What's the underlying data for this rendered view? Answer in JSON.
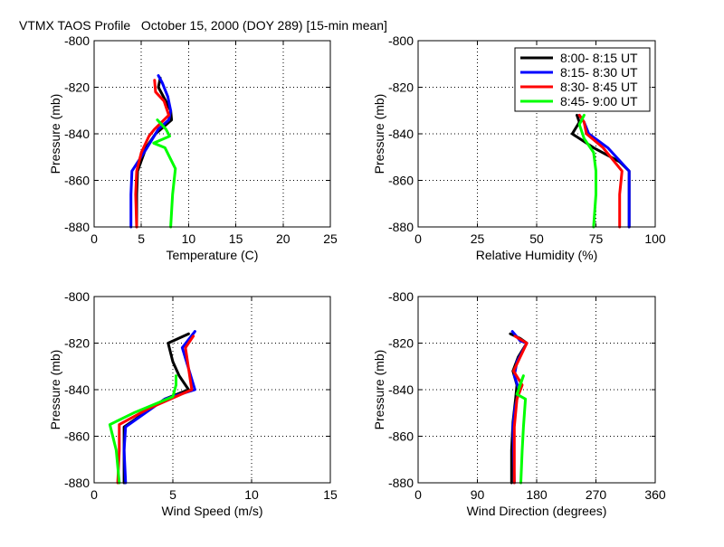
{
  "figure_title": "VTMX TAOS Profile   October 15, 2000 (DOY 289) [15-min mean]",
  "chart_data": [
    {
      "type": "line",
      "xlabel": "Temperature (C)",
      "ylabel": "Pressure (mb)",
      "xlim": [
        0,
        25
      ],
      "ylim": [
        -880,
        -800
      ],
      "xticks": [
        "0",
        "5",
        "10",
        "15",
        "20",
        "25"
      ],
      "yticks": [
        "-800",
        "-820",
        "-840",
        "-860",
        "-880"
      ],
      "grid": true,
      "series": [
        {
          "name": "8:00- 8:15 UT",
          "color": "#000000",
          "points": [
            [
              7.0,
              -816
            ],
            [
              6.8,
              -820
            ],
            [
              7.6,
              -826
            ],
            [
              8.1,
              -830
            ],
            [
              8.2,
              -834
            ],
            [
              6.5,
              -840
            ],
            [
              5.5,
              -846
            ],
            [
              4.6,
              -856
            ],
            [
              4.5,
              -866
            ],
            [
              4.5,
              -880
            ]
          ]
        },
        {
          "name": "8:15- 8:30 UT",
          "color": "#0000ff",
          "points": [
            [
              6.8,
              -815
            ],
            [
              7.2,
              -818
            ],
            [
              7.8,
              -824
            ],
            [
              8.1,
              -830
            ],
            [
              7.9,
              -834
            ],
            [
              6.8,
              -838
            ],
            [
              5.6,
              -846
            ],
            [
              4.0,
              -856
            ],
            [
              3.9,
              -866
            ],
            [
              3.9,
              -880
            ]
          ]
        },
        {
          "name": "8:30- 8:45 UT",
          "color": "#ff0000",
          "points": [
            [
              6.4,
              -817
            ],
            [
              6.5,
              -822
            ],
            [
              7.4,
              -826
            ],
            [
              7.9,
              -832
            ],
            [
              6.4,
              -838
            ],
            [
              5.8,
              -841
            ],
            [
              5.0,
              -848
            ],
            [
              4.5,
              -856
            ],
            [
              4.4,
              -866
            ],
            [
              4.5,
              -880
            ]
          ]
        },
        {
          "name": "8:45- 9:00 UT",
          "color": "#00ff00",
          "points": [
            [
              6.7,
              -834
            ],
            [
              7.6,
              -838
            ],
            [
              8.0,
              -841
            ],
            [
              6.3,
              -844
            ],
            [
              7.5,
              -846
            ],
            [
              8.6,
              -855
            ],
            [
              8.3,
              -866
            ],
            [
              8.1,
              -880
            ]
          ]
        }
      ]
    },
    {
      "type": "line",
      "xlabel": "Relative Humidity (%)",
      "ylabel": "Pressure (mb)",
      "xlim": [
        0,
        100
      ],
      "ylim": [
        -880,
        -800
      ],
      "xticks": [
        "0",
        "25",
        "50",
        "75",
        "100"
      ],
      "yticks": [
        "-800",
        "-820",
        "-840",
        "-860",
        "-880"
      ],
      "grid": true,
      "series": [
        {
          "name": "8:00- 8:15 UT",
          "color": "#000000",
          "points": [
            [
              67,
              -832
            ],
            [
              68,
              -835
            ],
            [
              65,
              -840
            ],
            [
              74,
              -846
            ],
            [
              85,
              -852
            ],
            [
              89,
              -856
            ],
            [
              89,
              -866
            ],
            [
              89,
              -880
            ]
          ]
        },
        {
          "name": "8:15- 8:30 UT",
          "color": "#0000ff",
          "points": [
            [
              68,
              -832
            ],
            [
              70,
              -835
            ],
            [
              72,
              -840
            ],
            [
              80,
              -846
            ],
            [
              89,
              -856
            ],
            [
              89,
              -866
            ],
            [
              89,
              -880
            ]
          ]
        },
        {
          "name": "8:30- 8:45 UT",
          "color": "#ff0000",
          "points": [
            [
              68,
              -832
            ],
            [
              70,
              -835
            ],
            [
              71,
              -840
            ],
            [
              78,
              -846
            ],
            [
              86,
              -856
            ],
            [
              85,
              -866
            ],
            [
              85,
              -880
            ]
          ]
        },
        {
          "name": "8:45- 9:00 UT",
          "color": "#00ff00",
          "points": [
            [
              70,
              -832
            ],
            [
              68,
              -836
            ],
            [
              70,
              -842
            ],
            [
              74,
              -848
            ],
            [
              75,
              -856
            ],
            [
              75,
              -866
            ],
            [
              74,
              -880
            ]
          ]
        }
      ]
    },
    {
      "type": "line",
      "xlabel": "Wind Speed (m/s)",
      "ylabel": "Pressure (mb)",
      "xlim": [
        0,
        15
      ],
      "ylim": [
        -880,
        -800
      ],
      "xticks": [
        "0",
        "5",
        "10",
        "15"
      ],
      "yticks": [
        "-800",
        "-820",
        "-840",
        "-860",
        "-880"
      ],
      "grid": true,
      "series": [
        {
          "name": "8:00- 8:15 UT",
          "color": "#000000",
          "points": [
            [
              6.0,
              -816
            ],
            [
              4.7,
              -820
            ],
            [
              5.0,
              -828
            ],
            [
              5.4,
              -834
            ],
            [
              6.0,
              -840
            ],
            [
              4.5,
              -844
            ],
            [
              1.9,
              -856
            ],
            [
              1.9,
              -866
            ],
            [
              1.9,
              -880
            ]
          ]
        },
        {
          "name": "8:15- 8:30 UT",
          "color": "#0000ff",
          "points": [
            [
              6.4,
              -815
            ],
            [
              5.6,
              -822
            ],
            [
              6.4,
              -840
            ],
            [
              4.5,
              -844
            ],
            [
              2.0,
              -856
            ],
            [
              1.9,
              -866
            ],
            [
              2.0,
              -880
            ]
          ]
        },
        {
          "name": "8:30- 8:45 UT",
          "color": "#ff0000",
          "points": [
            [
              6.3,
              -817
            ],
            [
              5.8,
              -822
            ],
            [
              6.2,
              -840
            ],
            [
              3.5,
              -848
            ],
            [
              1.6,
              -855
            ],
            [
              1.6,
              -866
            ],
            [
              1.5,
              -880
            ]
          ]
        },
        {
          "name": "8:45- 9:00 UT",
          "color": "#00ff00",
          "points": [
            [
              5.2,
              -834
            ],
            [
              5.2,
              -838
            ],
            [
              5.0,
              -843
            ],
            [
              2.5,
              -850
            ],
            [
              1.0,
              -855
            ],
            [
              1.4,
              -866
            ],
            [
              1.6,
              -880
            ]
          ]
        }
      ]
    },
    {
      "type": "line",
      "xlabel": "Wind Direction (degrees)",
      "ylabel": "Pressure (mb)",
      "xlim": [
        0,
        360
      ],
      "ylim": [
        -880,
        -800
      ],
      "xticks": [
        "0",
        "90",
        "180",
        "270",
        "360"
      ],
      "yticks": [
        "-800",
        "-820",
        "-840",
        "-860",
        "-880"
      ],
      "grid": true,
      "series": [
        {
          "name": "8:00- 8:15 UT",
          "color": "#000000",
          "points": [
            [
              140,
              -816
            ],
            [
              155,
              -818
            ],
            [
              165,
              -820
            ],
            [
              152,
              -826
            ],
            [
              144,
              -832
            ],
            [
              150,
              -838
            ],
            [
              148,
              -844
            ],
            [
              144,
              -854
            ],
            [
              142,
              -866
            ],
            [
              142,
              -880
            ]
          ]
        },
        {
          "name": "8:15- 8:30 UT",
          "color": "#0000ff",
          "points": [
            [
              143,
              -815
            ],
            [
              155,
              -819
            ],
            [
              165,
              -820
            ],
            [
              150,
              -828
            ],
            [
              146,
              -834
            ],
            [
              153,
              -840
            ],
            [
              147,
              -848
            ],
            [
              144,
              -856
            ],
            [
              145,
              -866
            ],
            [
              146,
              -880
            ]
          ]
        },
        {
          "name": "8:30- 8:45 UT",
          "color": "#ff0000",
          "points": [
            [
              147,
              -817
            ],
            [
              165,
              -820
            ],
            [
              155,
              -826
            ],
            [
              145,
              -832
            ],
            [
              158,
              -838
            ],
            [
              150,
              -844
            ],
            [
              146,
              -856
            ],
            [
              146,
              -866
            ],
            [
              146,
              -880
            ]
          ]
        },
        {
          "name": "8:45- 9:00 UT",
          "color": "#00ff00",
          "points": [
            [
              153,
              -839
            ],
            [
              160,
              -834
            ],
            [
              150,
              -842
            ],
            [
              163,
              -844
            ],
            [
              160,
              -856
            ],
            [
              158,
              -866
            ],
            [
              156,
              -880
            ]
          ]
        }
      ]
    }
  ]
}
